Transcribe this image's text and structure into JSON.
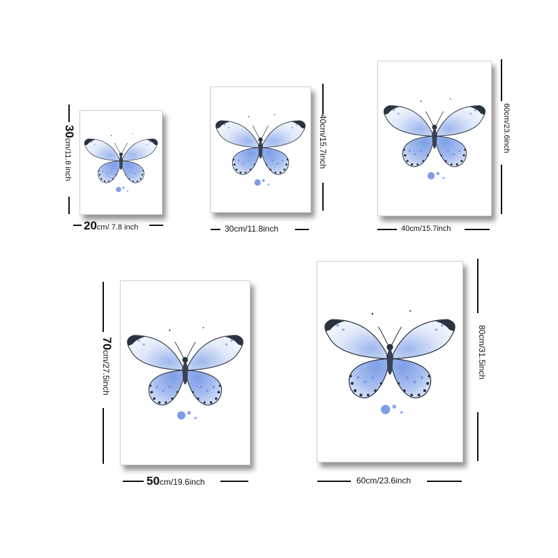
{
  "colors": {
    "wing_blue": "#6f93e3",
    "wing_light": "#e4ecfa",
    "wing_edge": "#2b3340",
    "frame_shadow": "#6b6b6b"
  },
  "icon": "butterfly-watercolor",
  "sizes": [
    {
      "id": "size-1",
      "width": {
        "num": "20",
        "rest": "cm/ 7.8 inch"
      },
      "height": {
        "num": "30",
        "rest": "cm/11.8 inch"
      }
    },
    {
      "id": "size-2",
      "width": {
        "num": "",
        "rest": "30cm/11.8inch"
      },
      "height": {
        "num": "",
        "rest": "40cm/15.7inch"
      }
    },
    {
      "id": "size-3",
      "width": {
        "num": "",
        "rest": "40cm/15.7inch"
      },
      "height": {
        "num": "",
        "rest": "60cm/23.6inch"
      }
    },
    {
      "id": "size-4",
      "width": {
        "num": "50",
        "rest": "cm/19.6inch"
      },
      "height": {
        "num": "70",
        "rest": "cm/27.5inch"
      }
    },
    {
      "id": "size-5",
      "width": {
        "num": "",
        "rest": "60cm/23.6inch"
      },
      "height": {
        "num": "",
        "rest": "80cm/31.5inch"
      }
    }
  ]
}
